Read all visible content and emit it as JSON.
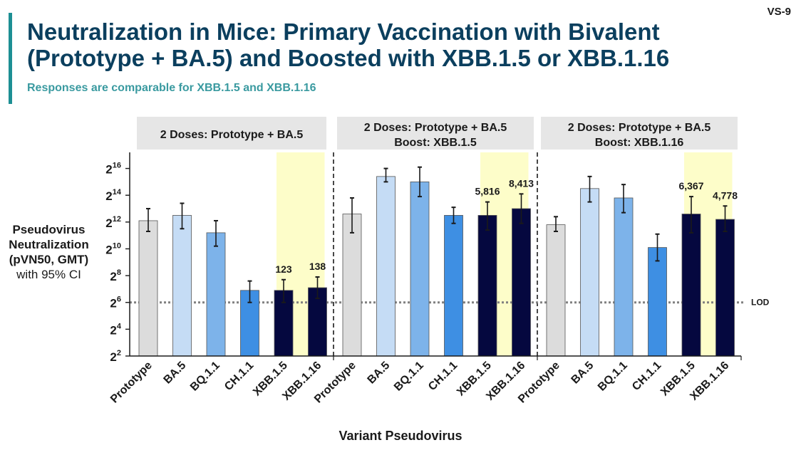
{
  "slide": {
    "id": "VS-9",
    "title": "Neutralization in Mice: Primary Vaccination with Bivalent (Prototype + BA.5) and Boosted with XBB.1.5 or XBB.1.16",
    "subtitle": "Responses are comparable for XBB.1.5 and XBB.1.16"
  },
  "chart_data": {
    "type": "bar",
    "ylabel_lines": [
      "Pseudovirus",
      "Neutralization",
      "(pVN50, GMT)",
      "with 95% CI"
    ],
    "xlabel": "Variant Pseudovirus",
    "y_scale": "log2",
    "y_ticks": [
      2,
      4,
      6,
      8,
      10,
      12,
      14,
      16
    ],
    "ylim_log2": [
      2,
      17.2
    ],
    "lod": {
      "label": "LOD",
      "value_log2": 6
    },
    "bar_colors": {
      "Prototype": "#dcdcdc",
      "BA.5": "#c5dcf5",
      "BQ.1.1": "#7db3ea",
      "CH.1.1": "#3e8fe3",
      "XBB.1.5": "#05083f",
      "XBB.1.16": "#05083f"
    },
    "highlight_color": "#fdfdc9",
    "groups": [
      {
        "header": [
          "2 Doses: Prototype + BA.5"
        ],
        "highlight_categories": [
          "XBB.1.5",
          "XBB.1.16"
        ],
        "bars": [
          {
            "category": "Prototype",
            "log2": 12.1,
            "ci": [
              11.3,
              13.0
            ]
          },
          {
            "category": "BA.5",
            "log2": 12.5,
            "ci": [
              11.5,
              13.4
            ]
          },
          {
            "category": "BQ.1.1",
            "log2": 11.2,
            "ci": [
              10.2,
              12.1
            ]
          },
          {
            "category": "CH.1.1",
            "log2": 6.9,
            "ci": [
              6.0,
              7.6
            ]
          },
          {
            "category": "XBB.1.5",
            "log2": 6.9,
            "ci": [
              6.0,
              7.7
            ],
            "label": "123"
          },
          {
            "category": "XBB.1.16",
            "log2": 7.1,
            "ci": [
              6.3,
              7.9
            ],
            "label": "138"
          }
        ]
      },
      {
        "header": [
          "2 Doses: Prototype + BA.5",
          "Boost: XBB.1.5"
        ],
        "highlight_categories": [
          "XBB.1.5",
          "XBB.1.16"
        ],
        "bars": [
          {
            "category": "Prototype",
            "log2": 12.6,
            "ci": [
              11.2,
              13.8
            ]
          },
          {
            "category": "BA.5",
            "log2": 15.4,
            "ci": [
              15.0,
              16.0
            ]
          },
          {
            "category": "BQ.1.1",
            "log2": 15.0,
            "ci": [
              13.9,
              16.1
            ]
          },
          {
            "category": "CH.1.1",
            "log2": 12.5,
            "ci": [
              11.9,
              13.1
            ]
          },
          {
            "category": "XBB.1.5",
            "log2": 12.5,
            "ci": [
              11.4,
              13.5
            ],
            "label": "5,816"
          },
          {
            "category": "XBB.1.16",
            "log2": 13.0,
            "ci": [
              11.9,
              14.1
            ],
            "label": "8,413"
          }
        ]
      },
      {
        "header": [
          "2 Doses: Prototype + BA.5",
          "Boost: XBB.1.16"
        ],
        "highlight_categories": [
          "XBB.1.5",
          "XBB.1.16"
        ],
        "bars": [
          {
            "category": "Prototype",
            "log2": 11.8,
            "ci": [
              11.3,
              12.4
            ]
          },
          {
            "category": "BA.5",
            "log2": 14.5,
            "ci": [
              13.5,
              15.4
            ]
          },
          {
            "category": "BQ.1.1",
            "log2": 13.8,
            "ci": [
              12.7,
              14.8
            ]
          },
          {
            "category": "CH.1.1",
            "log2": 10.1,
            "ci": [
              9.1,
              11.1
            ]
          },
          {
            "category": "XBB.1.5",
            "log2": 12.6,
            "ci": [
              11.2,
              13.9
            ],
            "label": "6,367"
          },
          {
            "category": "XBB.1.16",
            "log2": 12.2,
            "ci": [
              11.3,
              13.2
            ],
            "label": "4,778"
          }
        ]
      }
    ]
  }
}
